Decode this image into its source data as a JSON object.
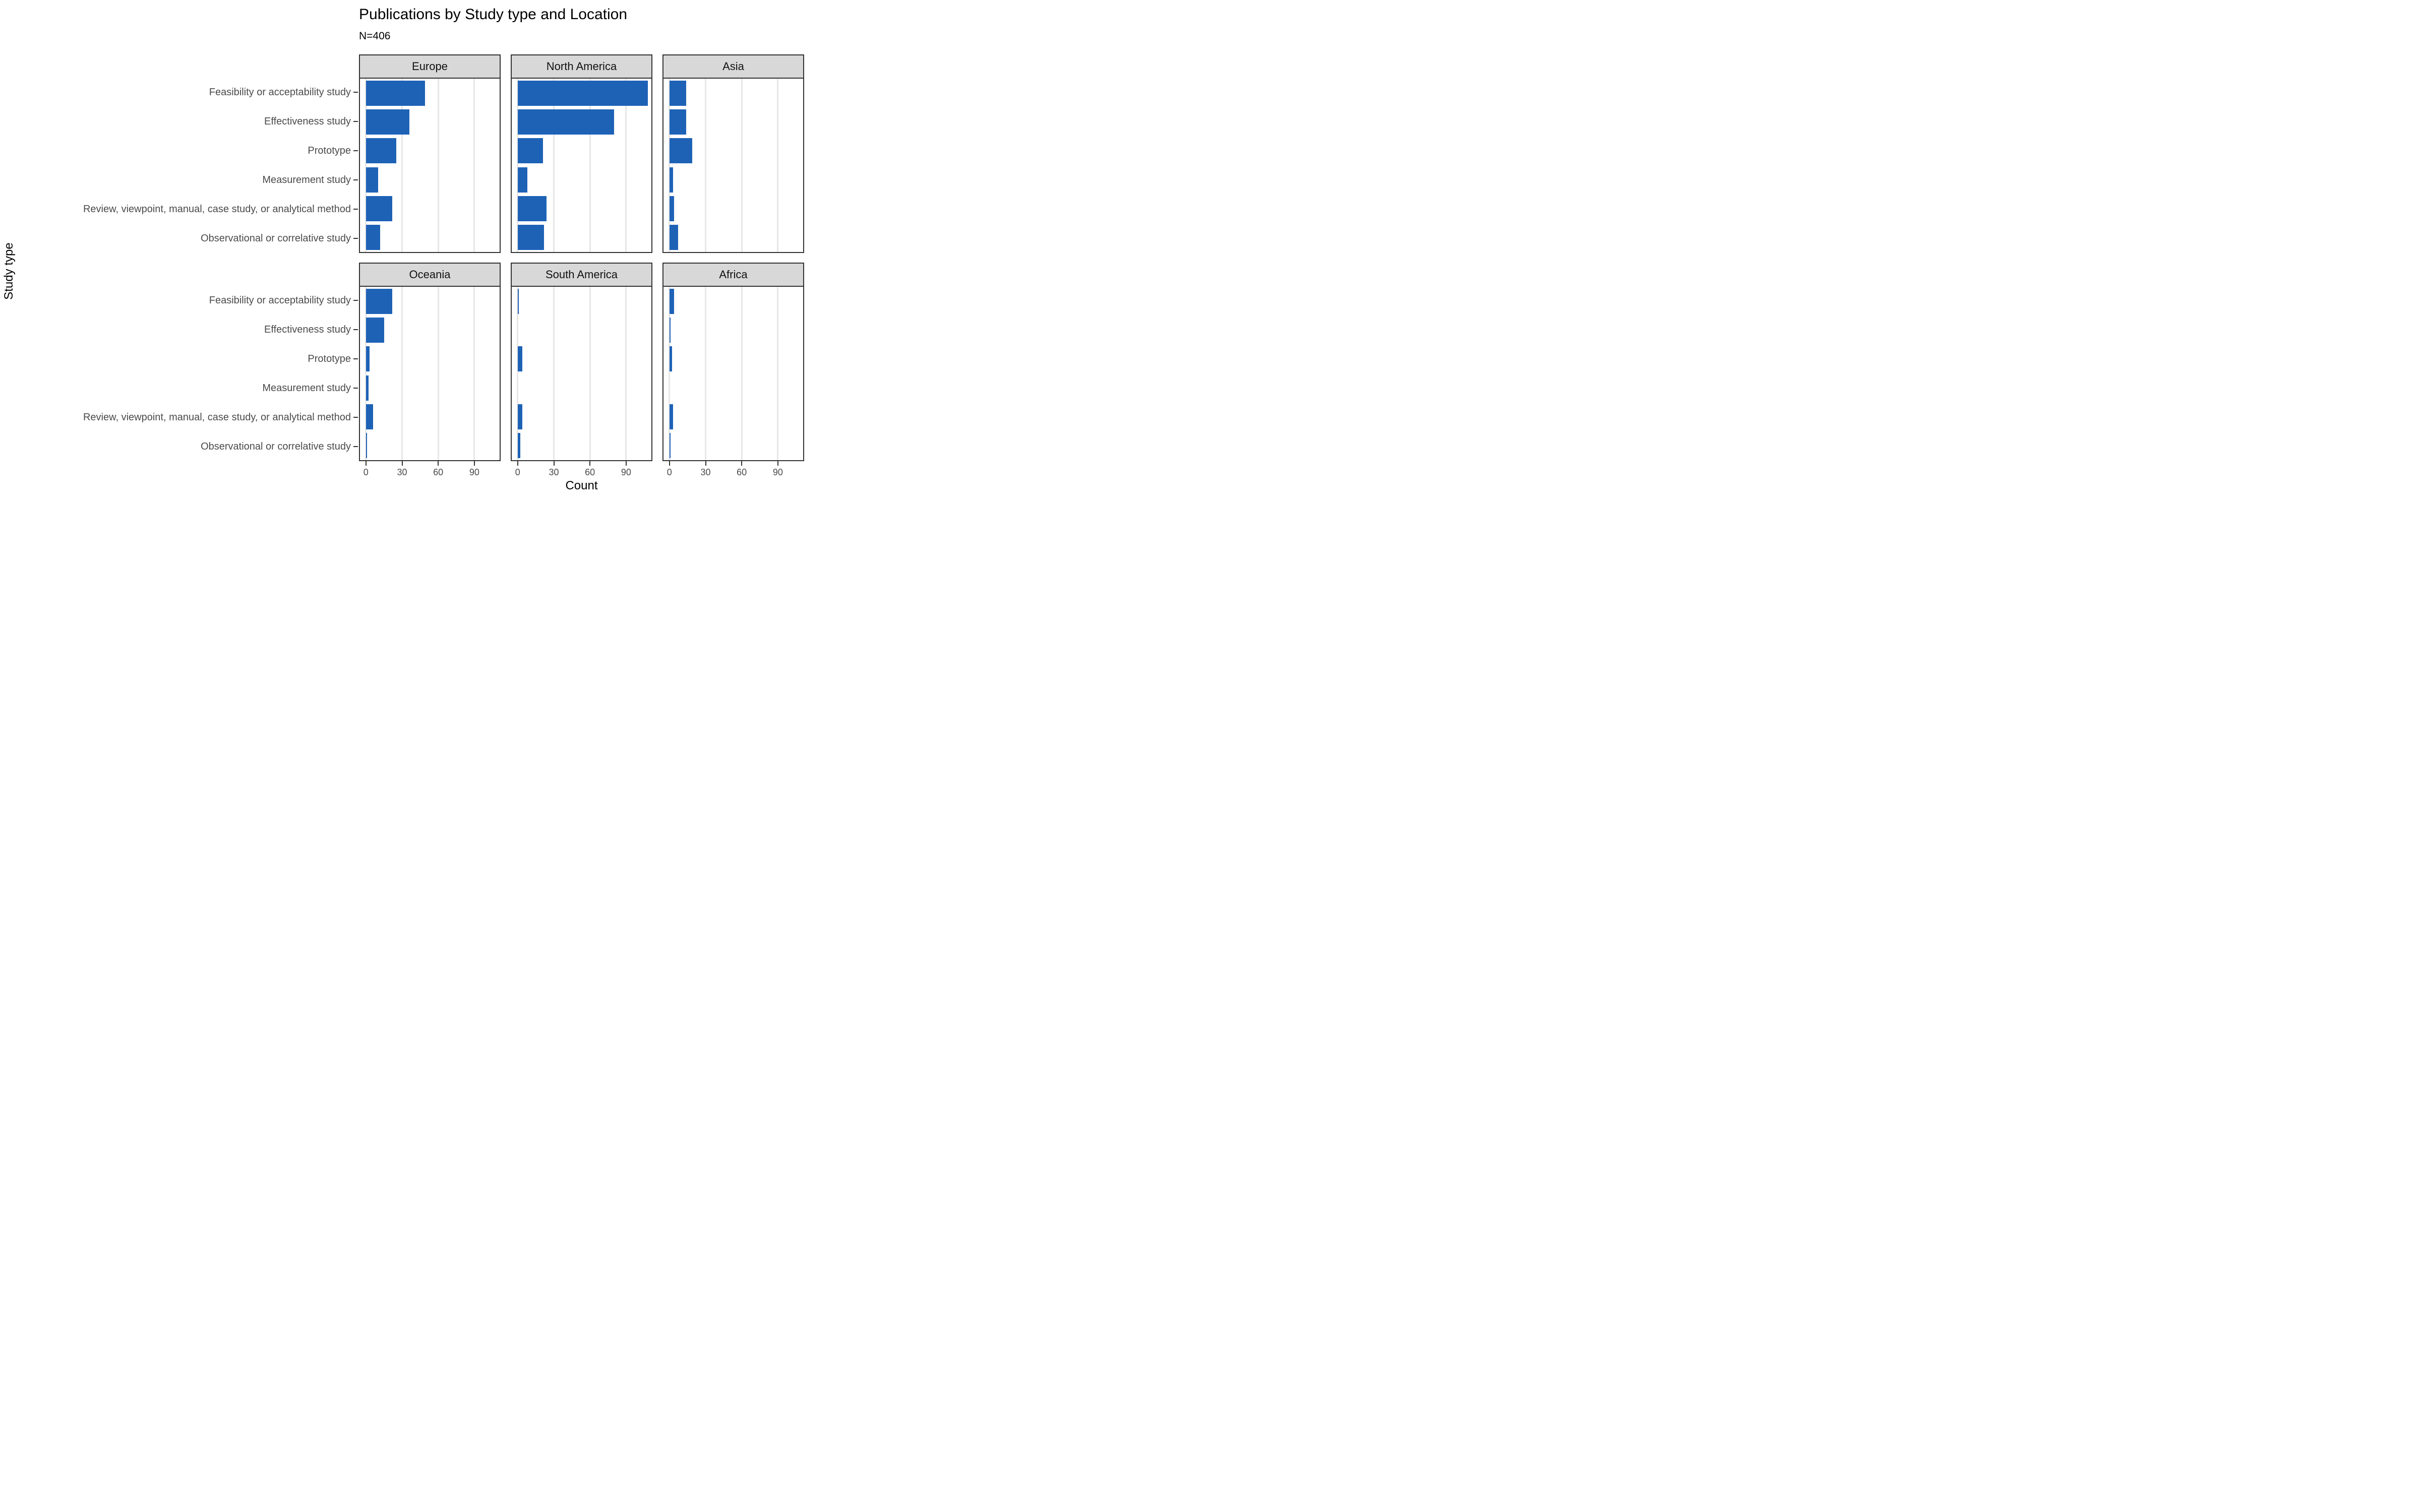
{
  "header": {
    "title": "Publications by Study type and Location",
    "subtitle": "N=406"
  },
  "axes": {
    "x_title": "Count",
    "y_title": "Study type",
    "x_ticks": [
      0,
      30,
      60,
      90
    ]
  },
  "chart_data": {
    "type": "bar",
    "orientation": "horizontal",
    "title": "Publications by Study type and Location",
    "subtitle": "N=406",
    "xlabel": "Count",
    "ylabel": "Study type",
    "xlim": [
      0,
      113
    ],
    "x_ticks": [
      0,
      30,
      60,
      90
    ],
    "grid": "vertical-major-only",
    "legend": "none",
    "bar_color": "#1E62B6",
    "categories": [
      "Feasibility or acceptability study",
      "Effectiveness study",
      "Prototype",
      "Measurement study",
      "Review, viewpoint, manual, case study, or analytical method",
      "Observational or correlative study"
    ],
    "facet_rows": [
      [
        {
          "name": "Europe",
          "values": [
            49,
            36,
            25,
            10,
            22,
            12
          ]
        },
        {
          "name": "North America",
          "values": [
            108,
            80,
            21,
            8,
            24,
            22
          ]
        },
        {
          "name": "Asia",
          "values": [
            14,
            14,
            19,
            3,
            4,
            7
          ]
        }
      ],
      [
        {
          "name": "Oceania",
          "values": [
            22,
            15,
            3,
            2,
            6,
            1
          ]
        },
        {
          "name": "South America",
          "values": [
            1,
            0,
            4,
            0,
            4,
            2
          ]
        },
        {
          "name": "Africa",
          "values": [
            4,
            1,
            2,
            0,
            3,
            1
          ]
        }
      ]
    ]
  },
  "style": {
    "bar_color": "#1E62B6",
    "strip_bg": "#D8D8D8",
    "border_color": "#333333",
    "grid_color": "#E7E7E7",
    "tick_label_color": "#4A4A4A",
    "text_color": "#000000"
  }
}
